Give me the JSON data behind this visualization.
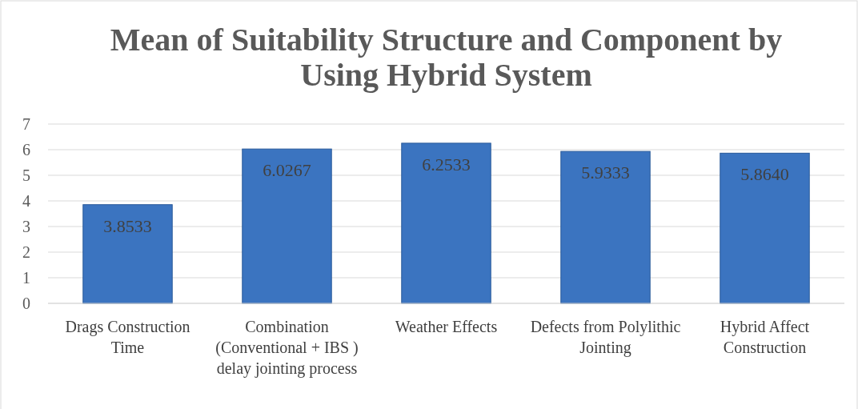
{
  "chart_data": {
    "type": "bar",
    "title": "Mean of Suitability Structure and Component by Using Hybrid System",
    "categories": [
      "Drags Construction Time",
      "Combination (Conventional + IBS ) delay jointing process",
      "Weather Effects",
      "Defects from Polylithic Jointing",
      "Hybrid Affect Construction"
    ],
    "values": [
      3.8533,
      6.0267,
      6.2533,
      5.9333,
      5.864
    ],
    "value_labels": [
      "3.8533",
      "6.0267",
      "6.2533",
      "5.9333",
      "5.8640"
    ],
    "color": "#3b74c0",
    "ylim": [
      0,
      7
    ],
    "yticks": [
      0,
      1,
      2,
      3,
      4,
      5,
      6,
      7
    ],
    "grid": "y"
  }
}
